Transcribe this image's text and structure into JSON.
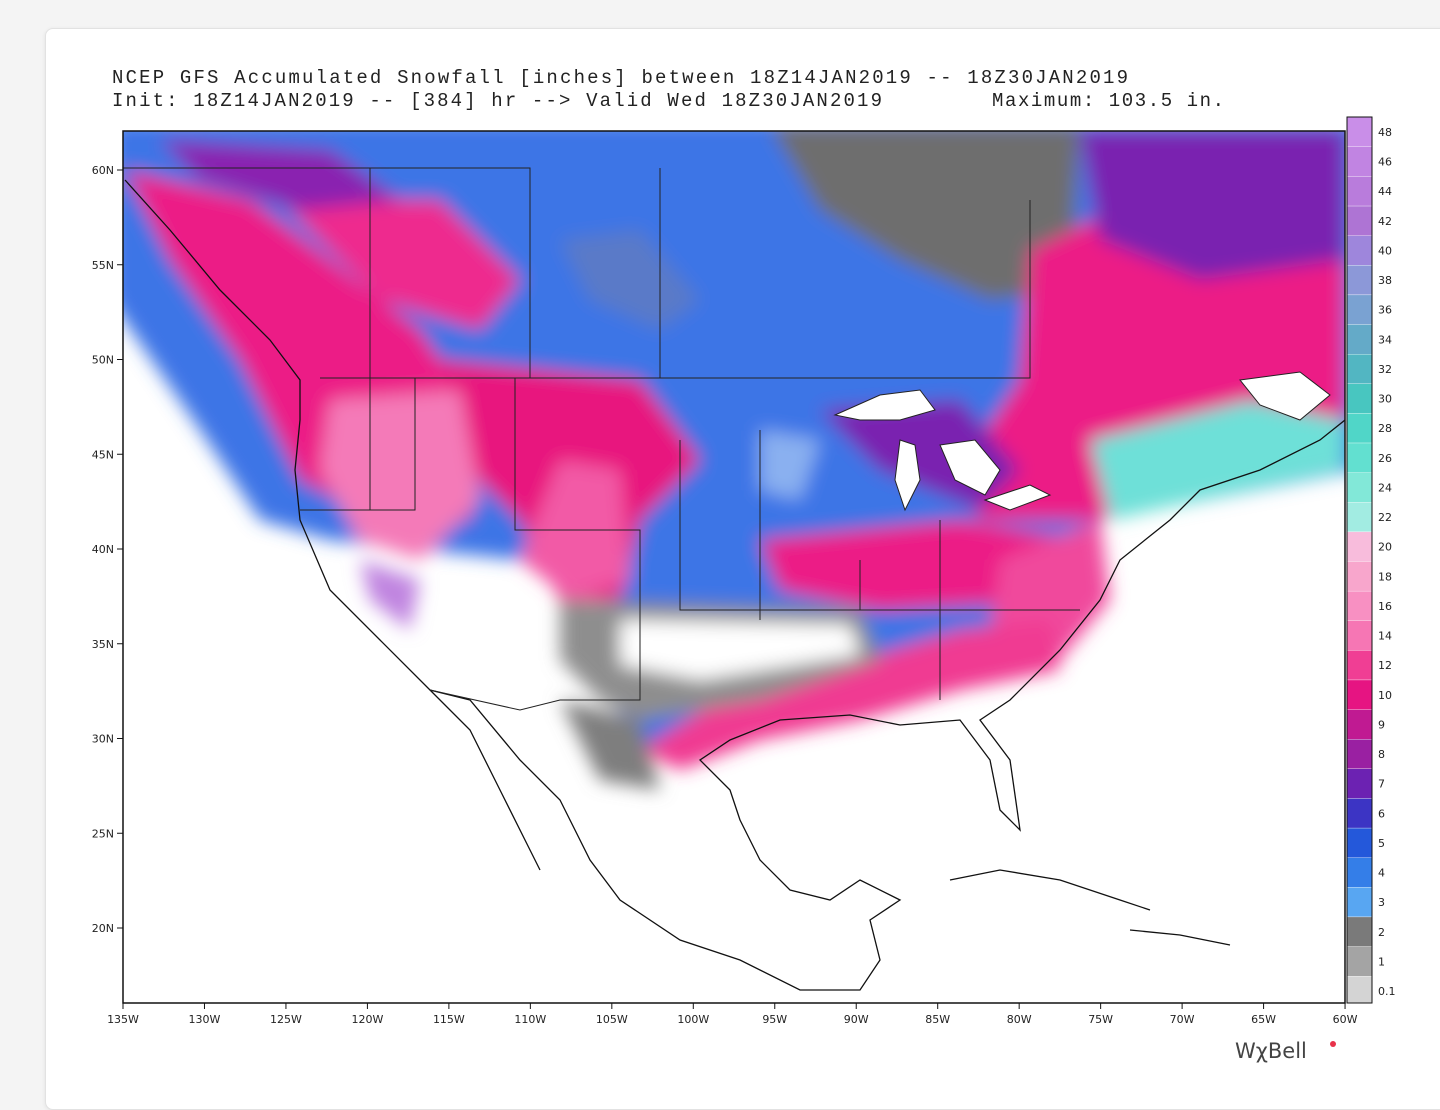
{
  "header": {
    "title": "NCEP GFS Accumulated Snowfall [inches] between 18Z14JAN2019 -- 18Z30JAN2019",
    "init": "Init: 18Z14JAN2019 -- [384] hr --> Valid Wed 18Z30JAN2019",
    "maximum": "Maximum: 103.5 in."
  },
  "map": {
    "latitude_labels": [
      "60N",
      "55N",
      "50N",
      "45N",
      "40N",
      "35N",
      "30N",
      "25N",
      "20N"
    ],
    "longitude_labels": [
      "135W",
      "130W",
      "125W",
      "120W",
      "115W",
      "110W",
      "105W",
      "100W",
      "95W",
      "90W",
      "85W",
      "80W",
      "75W",
      "70W",
      "65W",
      "60W"
    ]
  },
  "legend": {
    "levels": [
      48,
      46,
      44,
      42,
      40,
      38,
      36,
      34,
      32,
      30,
      28,
      26,
      24,
      22,
      20,
      18,
      16,
      14,
      12,
      10,
      9,
      8,
      7,
      6,
      5,
      4,
      3,
      2,
      1,
      0.1
    ],
    "colors": [
      "#c98ee8",
      "#c184e2",
      "#b97cdc",
      "#ae74d4",
      "#9e86dc",
      "#8c98d8",
      "#7aa2d2",
      "#64aac8",
      "#52b6c2",
      "#48c6c0",
      "#50d6c8",
      "#62e0d0",
      "#82e8d8",
      "#a2ece2",
      "#f8bcdc",
      "#f8a6cc",
      "#f890c2",
      "#f676b4",
      "#f03e94",
      "#e61482",
      "#c01a92",
      "#9a20a2",
      "#6c22b2",
      "#3c34c4",
      "#2458da",
      "#347ee8",
      "#58a6f2",
      "#7a7a7a",
      "#a4a4a4",
      "#d4d4d4"
    ]
  },
  "logo": "WχBell"
}
